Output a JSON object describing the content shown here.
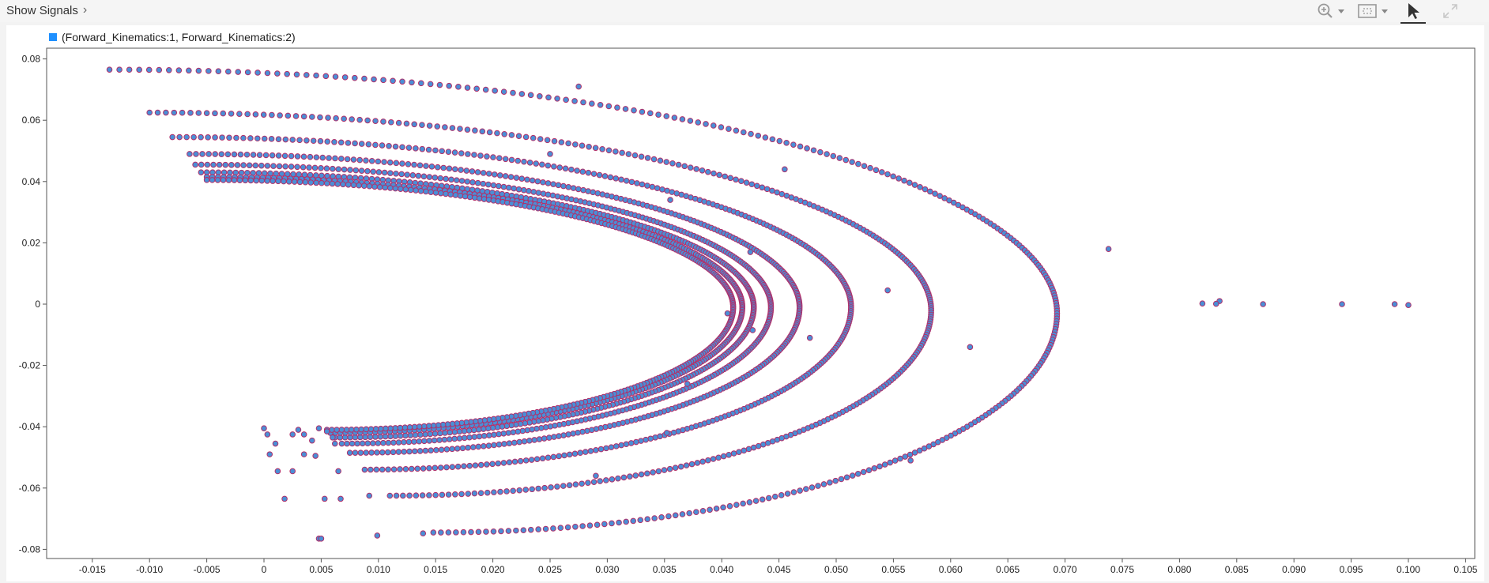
{
  "toolbar": {
    "show_signals_label": "Show Signals",
    "tools": [
      "zoom-in-icon",
      "fit-to-view-icon",
      "cursor-icon",
      "expand-icon"
    ]
  },
  "legend": {
    "label": "(Forward_Kinematics:1, Forward_Kinematics:2)",
    "color": "#1e90ff"
  },
  "chart_data": {
    "type": "scatter",
    "title": "",
    "xlabel": "",
    "ylabel": "",
    "xlim": [
      -0.018,
      0.106
    ],
    "ylim": [
      -0.082,
      0.083
    ],
    "grid": true,
    "xticks": [
      -0.015,
      -0.01,
      -0.005,
      0,
      0.005,
      0.01,
      0.015,
      0.02,
      0.025,
      0.03,
      0.035,
      0.04,
      0.045,
      0.05,
      0.055,
      0.06,
      0.065,
      0.07,
      0.075,
      0.08,
      0.085,
      0.09,
      0.095,
      0.1,
      0.105
    ],
    "xtick_labels": [
      "-0.015",
      "-0.010",
      "-0.005",
      "0",
      "0.005",
      "0.010",
      "0.015",
      "0.020",
      "0.025",
      "0.030",
      "0.035",
      "0.040",
      "0.045",
      "0.050",
      "0.055",
      "0.060",
      "0.065",
      "0.070",
      "0.075",
      "0.080",
      "0.085",
      "0.090",
      "0.095",
      "0.100",
      "0.105"
    ],
    "yticks": [
      0.08,
      0.06,
      0.04,
      0.02,
      0,
      -0.02,
      -0.04,
      -0.06,
      -0.08
    ],
    "ytick_labels": [
      "0.08",
      "0.06",
      "0.04",
      "0.02",
      "0",
      "-0.02",
      "-0.04",
      "-0.06",
      "-0.08"
    ],
    "marker_fill": "#4a8fd6",
    "marker_stroke": "#b0306a",
    "series": [
      {
        "name": "(Forward_Kinematics:1, Forward_Kinematics:2)",
        "arcs": [
          {
            "top_x": -0.0135,
            "top_y": 0.0765,
            "vertex_x": 0.0693,
            "vertex_y": -0.003,
            "bottom_x": 0.0148,
            "bottom_y": -0.0745,
            "tail": [
              [
                0.0835,
                0.001
              ],
              [
                0.0832,
                0.0001
              ],
              [
                0.082,
                0.0002
              ]
            ]
          },
          {
            "top_x": -0.01,
            "top_y": 0.0625,
            "vertex_x": 0.0583,
            "vertex_y": -0.002,
            "bottom_x": 0.011,
            "bottom_y": -0.0625
          },
          {
            "top_x": -0.008,
            "top_y": 0.0545,
            "vertex_x": 0.0513,
            "vertex_y": -0.001,
            "bottom_x": 0.0088,
            "bottom_y": -0.054
          },
          {
            "top_x": -0.0065,
            "top_y": 0.049,
            "vertex_x": 0.0468,
            "vertex_y": -0.001,
            "bottom_x": 0.0075,
            "bottom_y": -0.0485
          },
          {
            "top_x": -0.006,
            "top_y": 0.0455,
            "vertex_x": 0.0443,
            "vertex_y": -0.001,
            "bottom_x": 0.0068,
            "bottom_y": -0.0455
          },
          {
            "top_x": -0.0055,
            "top_y": 0.043,
            "vertex_x": 0.0428,
            "vertex_y": -0.001,
            "bottom_x": 0.0062,
            "bottom_y": -0.0435
          },
          {
            "top_x": -0.005,
            "top_y": 0.0415,
            "vertex_x": 0.0418,
            "vertex_y": -0.001,
            "bottom_x": 0.0058,
            "bottom_y": -0.042
          },
          {
            "top_x": -0.005,
            "top_y": 0.0405,
            "vertex_x": 0.041,
            "vertex_y": -0.001,
            "bottom_x": 0.0055,
            "bottom_y": -0.041
          }
        ],
        "outliers": [
          [
            0.0275,
            0.071
          ],
          [
            0.025,
            0.049
          ],
          [
            0.0355,
            0.034
          ],
          [
            0.0455,
            0.044
          ],
          [
            0.0425,
            0.017
          ],
          [
            0.0738,
            0.018
          ],
          [
            0.0545,
            0.0045
          ],
          [
            0.0405,
            -0.003
          ],
          [
            0.0427,
            -0.0085
          ],
          [
            0.0477,
            -0.011
          ],
          [
            0.0617,
            -0.014
          ],
          [
            0.037,
            -0.026
          ],
          [
            0.0352,
            -0.042
          ],
          [
            0.0565,
            -0.051
          ],
          [
            0.029,
            -0.056
          ],
          [
            0.0873,
            0.0
          ],
          [
            0.0942,
            0.0
          ],
          [
            0.0988,
            0.0
          ],
          [
            0.1,
            -0.0003
          ],
          [
            0.0,
            -0.0405
          ],
          [
            0.0003,
            -0.0425
          ],
          [
            0.001,
            -0.0455
          ],
          [
            0.0025,
            -0.0425
          ],
          [
            0.003,
            -0.041
          ],
          [
            0.0035,
            -0.0425
          ],
          [
            0.0042,
            -0.0445
          ],
          [
            0.0048,
            -0.0405
          ],
          [
            0.0055,
            -0.0415
          ],
          [
            0.006,
            -0.0435
          ],
          [
            0.0062,
            -0.0455
          ],
          [
            0.0035,
            -0.049
          ],
          [
            0.0045,
            -0.0495
          ],
          [
            0.0005,
            -0.049
          ],
          [
            0.0012,
            -0.0545
          ],
          [
            0.0025,
            -0.0545
          ],
          [
            0.0065,
            -0.0545
          ],
          [
            0.0018,
            -0.0635
          ],
          [
            0.0053,
            -0.0635
          ],
          [
            0.0067,
            -0.0635
          ],
          [
            0.0092,
            -0.0625
          ],
          [
            0.0048,
            -0.0765
          ],
          [
            0.005,
            -0.0765
          ],
          [
            0.0099,
            -0.0755
          ],
          [
            0.0139,
            -0.0748
          ]
        ]
      }
    ]
  }
}
